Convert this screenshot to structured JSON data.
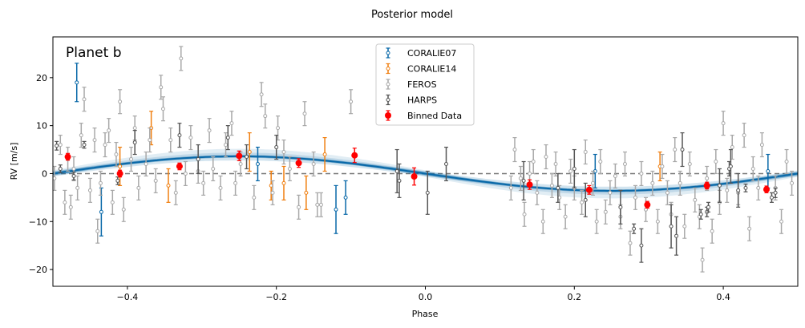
{
  "chart_data": {
    "type": "scatter",
    "title": "Posterior model",
    "panel_label": "Planet b",
    "xlabel": "Phase",
    "ylabel": "RV [m/s]",
    "xlim": [
      -0.5,
      0.5
    ],
    "ylim": [
      -23.5,
      28.5
    ],
    "xticks": [
      -0.4,
      -0.2,
      0.0,
      0.2,
      0.4
    ],
    "xtick_labels": [
      "−0.4",
      "−0.2",
      "0.0",
      "0.2",
      "0.4"
    ],
    "yticks": [
      -20,
      -10,
      0,
      10,
      20
    ],
    "ytick_labels": [
      "−20",
      "−10",
      "0",
      "10",
      "20"
    ],
    "grid": false,
    "legend_position": "top-center",
    "zero_line": {
      "y": 0,
      "style": "dashed",
      "color": "#777777"
    },
    "model": {
      "type": "sine",
      "amplitude": 3.6,
      "period_phase": 1,
      "phase_zero_value": 0,
      "color": "#0868a8"
    },
    "legend": [
      {
        "label": "CORALIE07",
        "color": "#0868a8",
        "marker": "open-errorbar"
      },
      {
        "label": "CORALIE14",
        "color": "#f07f10",
        "marker": "open-errorbar"
      },
      {
        "label": "FEROS",
        "color": "#a8a8a8",
        "marker": "open-errorbar"
      },
      {
        "label": "HARPS",
        "color": "#555555",
        "marker": "open-errorbar"
      },
      {
        "label": "Binned Data",
        "color": "#ff0000",
        "marker": "filled-errorbar"
      }
    ],
    "series": [
      {
        "name": "CORALIE07",
        "color": "#0868a8",
        "points": [
          {
            "x": -0.468,
            "y": 19.0,
            "err": 4.0
          },
          {
            "x": -0.435,
            "y": -8.0,
            "err": 5.0
          },
          {
            "x": -0.225,
            "y": 2.0,
            "err": 3.5
          },
          {
            "x": -0.12,
            "y": -7.5,
            "err": 5.0
          },
          {
            "x": -0.107,
            "y": -5.0,
            "err": 3.5
          },
          {
            "x": 0.228,
            "y": 0.5,
            "err": 3.5
          },
          {
            "x": 0.46,
            "y": 0.5,
            "err": 3.5
          }
        ]
      },
      {
        "name": "CORALIE14",
        "color": "#f07f10",
        "points": [
          {
            "x": -0.41,
            "y": 1.5,
            "err": 4.0
          },
          {
            "x": -0.368,
            "y": 9.5,
            "err": 3.5
          },
          {
            "x": -0.345,
            "y": -2.5,
            "err": 3.5
          },
          {
            "x": -0.236,
            "y": 4.5,
            "err": 4.0
          },
          {
            "x": -0.207,
            "y": -2.5,
            "err": 3.0
          },
          {
            "x": -0.19,
            "y": -2.0,
            "err": 3.5
          },
          {
            "x": -0.16,
            "y": -4.0,
            "err": 3.5
          },
          {
            "x": -0.135,
            "y": 4.0,
            "err": 3.5
          },
          {
            "x": 0.315,
            "y": 1.5,
            "err": 3.0
          }
        ]
      },
      {
        "name": "FEROS",
        "color": "#a8a8a8",
        "points": [
          {
            "x": -0.498,
            "y": -1.0,
            "err": 2.5
          },
          {
            "x": -0.49,
            "y": 6.0,
            "err": 2.0
          },
          {
            "x": -0.484,
            "y": -6.0,
            "err": 2.5
          },
          {
            "x": -0.48,
            "y": 3.0,
            "err": 2.5
          },
          {
            "x": -0.476,
            "y": -7.0,
            "err": 2.5
          },
          {
            "x": -0.472,
            "y": 1.0,
            "err": 2.5
          },
          {
            "x": -0.467,
            "y": -3.0,
            "err": 2.5
          },
          {
            "x": -0.462,
            "y": 8.0,
            "err": 2.5
          },
          {
            "x": -0.458,
            "y": 15.5,
            "err": 2.5
          },
          {
            "x": -0.45,
            "y": -3.5,
            "err": 2.5
          },
          {
            "x": -0.444,
            "y": 7.0,
            "err": 2.5
          },
          {
            "x": -0.44,
            "y": -12.0,
            "err": 2.5
          },
          {
            "x": -0.436,
            "y": -2.0,
            "err": 2.5
          },
          {
            "x": -0.43,
            "y": 6.0,
            "err": 2.5
          },
          {
            "x": -0.425,
            "y": 9.0,
            "err": 2.5
          },
          {
            "x": -0.42,
            "y": -6.0,
            "err": 2.5
          },
          {
            "x": -0.415,
            "y": 4.0,
            "err": 2.5
          },
          {
            "x": -0.41,
            "y": 15.0,
            "err": 2.5
          },
          {
            "x": -0.405,
            "y": -7.5,
            "err": 2.5
          },
          {
            "x": -0.395,
            "y": 3.0,
            "err": 2.5
          },
          {
            "x": -0.39,
            "y": 9.5,
            "err": 2.5
          },
          {
            "x": -0.385,
            "y": -3.0,
            "err": 2.5
          },
          {
            "x": -0.375,
            "y": 2.0,
            "err": 2.5
          },
          {
            "x": -0.37,
            "y": 7.0,
            "err": 2.5
          },
          {
            "x": -0.362,
            "y": -1.5,
            "err": 2.5
          },
          {
            "x": -0.355,
            "y": 18.0,
            "err": 2.5
          },
          {
            "x": -0.352,
            "y": 13.5,
            "err": 2.5
          },
          {
            "x": -0.342,
            "y": 7.0,
            "err": 2.5
          },
          {
            "x": -0.335,
            "y": -4.0,
            "err": 2.5
          },
          {
            "x": -0.328,
            "y": 24.0,
            "err": 2.5
          },
          {
            "x": -0.322,
            "y": 0.0,
            "err": 2.5
          },
          {
            "x": -0.315,
            "y": 7.5,
            "err": 2.5
          },
          {
            "x": -0.305,
            "y": 0.5,
            "err": 2.5
          },
          {
            "x": -0.298,
            "y": -2.0,
            "err": 2.5
          },
          {
            "x": -0.29,
            "y": 9.0,
            "err": 2.5
          },
          {
            "x": -0.285,
            "y": 1.0,
            "err": 2.5
          },
          {
            "x": -0.275,
            "y": -3.0,
            "err": 2.5
          },
          {
            "x": -0.268,
            "y": 6.0,
            "err": 2.5
          },
          {
            "x": -0.26,
            "y": 10.5,
            "err": 2.5
          },
          {
            "x": -0.255,
            "y": -2.0,
            "err": 2.5
          },
          {
            "x": -0.248,
            "y": 2.0,
            "err": 2.5
          },
          {
            "x": -0.23,
            "y": -5.0,
            "err": 2.5
          },
          {
            "x": -0.22,
            "y": 16.5,
            "err": 2.5
          },
          {
            "x": -0.215,
            "y": 12.0,
            "err": 2.5
          },
          {
            "x": -0.205,
            "y": -4.0,
            "err": 2.5
          },
          {
            "x": -0.198,
            "y": 9.5,
            "err": 2.5
          },
          {
            "x": -0.19,
            "y": 4.5,
            "err": 2.5
          },
          {
            "x": -0.182,
            "y": 1.0,
            "err": 2.5
          },
          {
            "x": -0.17,
            "y": -7.0,
            "err": 2.5
          },
          {
            "x": -0.162,
            "y": 12.5,
            "err": 2.5
          },
          {
            "x": -0.15,
            "y": 2.0,
            "err": 2.5
          },
          {
            "x": -0.145,
            "y": -6.5,
            "err": 2.5
          },
          {
            "x": -0.14,
            "y": -6.5,
            "err": 2.5
          },
          {
            "x": -0.1,
            "y": 15.0,
            "err": 2.5
          },
          {
            "x": 0.115,
            "y": -3.0,
            "err": 2.5
          },
          {
            "x": 0.12,
            "y": 5.0,
            "err": 2.5
          },
          {
            "x": 0.128,
            "y": -1.0,
            "err": 2.5
          },
          {
            "x": 0.133,
            "y": -8.5,
            "err": 2.5
          },
          {
            "x": 0.14,
            "y": 0.0,
            "err": 2.5
          },
          {
            "x": 0.145,
            "y": 2.5,
            "err": 2.5
          },
          {
            "x": 0.15,
            "y": -4.0,
            "err": 2.5
          },
          {
            "x": 0.158,
            "y": -10.0,
            "err": 2.5
          },
          {
            "x": 0.162,
            "y": 3.5,
            "err": 2.5
          },
          {
            "x": 0.17,
            "y": -2.5,
            "err": 2.5
          },
          {
            "x": 0.175,
            "y": 2.0,
            "err": 2.5
          },
          {
            "x": 0.18,
            "y": -5.0,
            "err": 2.5
          },
          {
            "x": 0.188,
            "y": -9.0,
            "err": 2.5
          },
          {
            "x": 0.195,
            "y": 0.5,
            "err": 2.5
          },
          {
            "x": 0.2,
            "y": -3.0,
            "err": 2.5
          },
          {
            "x": 0.21,
            "y": -6.0,
            "err": 2.5
          },
          {
            "x": 0.215,
            "y": 4.5,
            "err": 2.5
          },
          {
            "x": 0.225,
            "y": -2.0,
            "err": 2.5
          },
          {
            "x": 0.23,
            "y": -10.0,
            "err": 2.5
          },
          {
            "x": 0.235,
            "y": 2.5,
            "err": 2.5
          },
          {
            "x": 0.242,
            "y": -8.0,
            "err": 2.5
          },
          {
            "x": 0.248,
            "y": -4.0,
            "err": 2.5
          },
          {
            "x": 0.255,
            "y": -0.5,
            "err": 2.5
          },
          {
            "x": 0.262,
            "y": -9.0,
            "err": 2.5
          },
          {
            "x": 0.268,
            "y": 2.0,
            "err": 2.5
          },
          {
            "x": 0.275,
            "y": -14.5,
            "err": 2.5
          },
          {
            "x": 0.282,
            "y": -5.0,
            "err": 2.5
          },
          {
            "x": 0.29,
            "y": 0.0,
            "err": 2.5
          },
          {
            "x": 0.296,
            "y": -7.5,
            "err": 2.5
          },
          {
            "x": 0.305,
            "y": -2.0,
            "err": 2.5
          },
          {
            "x": 0.312,
            "y": -10.0,
            "err": 2.5
          },
          {
            "x": 0.318,
            "y": 1.5,
            "err": 2.5
          },
          {
            "x": 0.325,
            "y": -4.0,
            "err": 2.5
          },
          {
            "x": 0.33,
            "y": -8.5,
            "err": 2.5
          },
          {
            "x": 0.335,
            "y": 5.0,
            "err": 2.5
          },
          {
            "x": 0.342,
            "y": -2.0,
            "err": 2.5
          },
          {
            "x": 0.348,
            "y": -11.0,
            "err": 2.5
          },
          {
            "x": 0.355,
            "y": 2.0,
            "err": 2.5
          },
          {
            "x": 0.362,
            "y": -5.5,
            "err": 2.5
          },
          {
            "x": 0.368,
            "y": -9.0,
            "err": 2.5
          },
          {
            "x": 0.372,
            "y": -18.0,
            "err": 2.5
          },
          {
            "x": 0.378,
            "y": -1.0,
            "err": 2.5
          },
          {
            "x": 0.385,
            "y": -12.0,
            "err": 2.5
          },
          {
            "x": 0.39,
            "y": 2.5,
            "err": 2.5
          },
          {
            "x": 0.395,
            "y": -6.0,
            "err": 2.5
          },
          {
            "x": 0.4,
            "y": 10.5,
            "err": 2.5
          },
          {
            "x": 0.405,
            "y": -3.5,
            "err": 2.5
          },
          {
            "x": 0.412,
            "y": 5.5,
            "err": 2.5
          },
          {
            "x": 0.42,
            "y": -4.0,
            "err": 2.5
          },
          {
            "x": 0.428,
            "y": 8.0,
            "err": 2.5
          },
          {
            "x": 0.435,
            "y": -11.5,
            "err": 2.5
          },
          {
            "x": 0.44,
            "y": 1.0,
            "err": 2.5
          },
          {
            "x": 0.447,
            "y": -3.0,
            "err": 2.5
          },
          {
            "x": 0.452,
            "y": 6.0,
            "err": 2.5
          },
          {
            "x": 0.47,
            "y": -3.0,
            "err": 2.5
          },
          {
            "x": 0.478,
            "y": -10.0,
            "err": 2.5
          },
          {
            "x": 0.485,
            "y": 2.5,
            "err": 2.5
          },
          {
            "x": 0.492,
            "y": -2.0,
            "err": 2.5
          }
        ]
      },
      {
        "name": "HARPS",
        "color": "#555555",
        "points": [
          {
            "x": -0.495,
            "y": 5.8,
            "err": 0.9
          },
          {
            "x": -0.49,
            "y": 1.0,
            "err": 0.8
          },
          {
            "x": -0.472,
            "y": -0.5,
            "err": 0.8
          },
          {
            "x": -0.458,
            "y": 6.0,
            "err": 0.7
          },
          {
            "x": -0.413,
            "y": -1.5,
            "err": 0.8
          },
          {
            "x": -0.39,
            "y": 6.5,
            "err": 2.5
          },
          {
            "x": -0.33,
            "y": 8.0,
            "err": 2.5
          },
          {
            "x": -0.305,
            "y": 3.0,
            "err": 3.0
          },
          {
            "x": -0.265,
            "y": 7.5,
            "err": 2.5
          },
          {
            "x": -0.24,
            "y": 3.5,
            "err": 2.5
          },
          {
            "x": -0.2,
            "y": 5.5,
            "err": 2.5
          },
          {
            "x": -0.038,
            "y": 0.5,
            "err": 4.5
          },
          {
            "x": -0.035,
            "y": -1.5,
            "err": 3.5
          },
          {
            "x": 0.003,
            "y": -4.0,
            "err": 4.5
          },
          {
            "x": 0.028,
            "y": 2.0,
            "err": 3.5
          },
          {
            "x": 0.132,
            "y": -1.5,
            "err": 4.0
          },
          {
            "x": 0.178,
            "y": -3.0,
            "err": 3.0
          },
          {
            "x": 0.2,
            "y": 1.0,
            "err": 4.0
          },
          {
            "x": 0.215,
            "y": -5.5,
            "err": 3.5
          },
          {
            "x": 0.262,
            "y": -7.0,
            "err": 3.5
          },
          {
            "x": 0.28,
            "y": -11.5,
            "err": 1.0
          },
          {
            "x": 0.29,
            "y": -15.0,
            "err": 3.5
          },
          {
            "x": 0.33,
            "y": -11.0,
            "err": 4.5
          },
          {
            "x": 0.337,
            "y": -13.0,
            "err": 4.0
          },
          {
            "x": 0.345,
            "y": 5.0,
            "err": 3.5
          },
          {
            "x": 0.37,
            "y": -8.5,
            "err": 1.0
          },
          {
            "x": 0.378,
            "y": -8.0,
            "err": 1.0
          },
          {
            "x": 0.38,
            "y": -7.0,
            "err": 1.0
          },
          {
            "x": 0.395,
            "y": -2.5,
            "err": 3.5
          },
          {
            "x": 0.408,
            "y": 1.0,
            "err": 1.5
          },
          {
            "x": 0.41,
            "y": 1.5,
            "err": 3.5
          },
          {
            "x": 0.42,
            "y": -3.5,
            "err": 3.5
          },
          {
            "x": 0.43,
            "y": -3.0,
            "err": 0.8
          },
          {
            "x": 0.465,
            "y": -5.0,
            "err": 1.0
          },
          {
            "x": 0.47,
            "y": -4.0,
            "err": 1.0
          }
        ]
      },
      {
        "name": "Binned Data",
        "color": "#ff0000",
        "points": [
          {
            "x": -0.48,
            "y": 3.5,
            "err": 0.7
          },
          {
            "x": -0.41,
            "y": 0.0,
            "err": 0.7
          },
          {
            "x": -0.33,
            "y": 1.5,
            "err": 0.7
          },
          {
            "x": -0.25,
            "y": 3.7,
            "err": 1.0
          },
          {
            "x": -0.17,
            "y": 2.2,
            "err": 0.9
          },
          {
            "x": -0.095,
            "y": 3.8,
            "err": 1.5
          },
          {
            "x": -0.015,
            "y": -0.6,
            "err": 1.8
          },
          {
            "x": 0.14,
            "y": -2.3,
            "err": 1.0
          },
          {
            "x": 0.22,
            "y": -3.4,
            "err": 0.9
          },
          {
            "x": 0.298,
            "y": -6.5,
            "err": 0.7
          },
          {
            "x": 0.378,
            "y": -2.5,
            "err": 0.7
          },
          {
            "x": 0.458,
            "y": -3.3,
            "err": 0.7
          }
        ]
      }
    ]
  }
}
